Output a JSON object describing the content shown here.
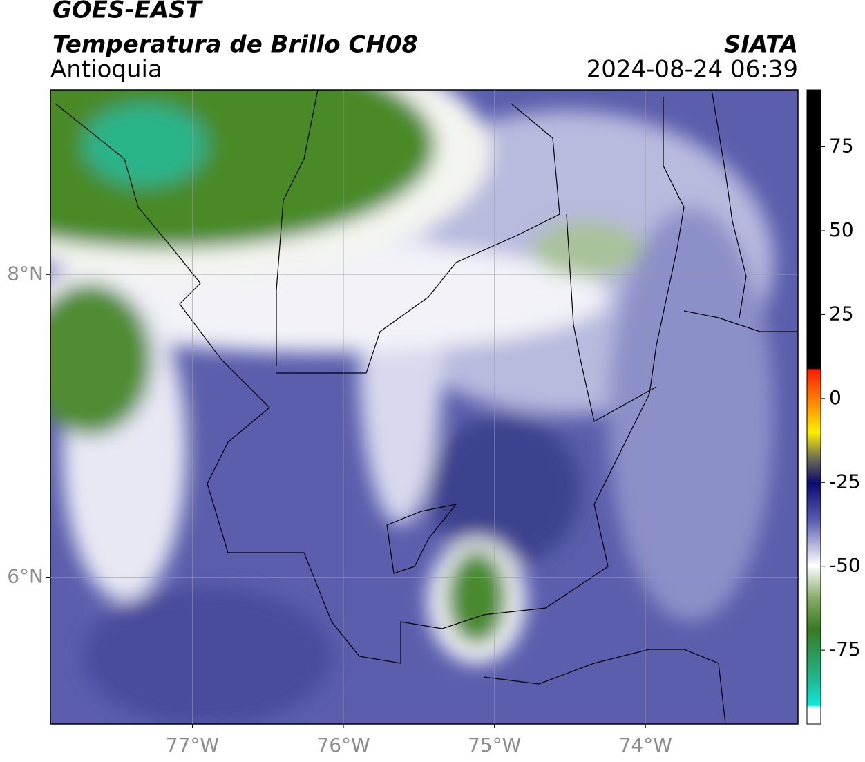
{
  "chart_data": {
    "type": "map",
    "title": "GOES-EAST",
    "subtitle": "Temperatura de Brillo CH08",
    "region": "Antioquia",
    "source": "SIATA",
    "datetime": "2024-08-24 06:39",
    "xlim": [
      -77.94,
      -72.99
    ],
    "ylim": [
      5.03,
      9.22
    ],
    "xticks": [
      {
        "value": -77,
        "label": "77°W"
      },
      {
        "value": -76,
        "label": "76°W"
      },
      {
        "value": -75,
        "label": "75°W"
      },
      {
        "value": -74,
        "label": "74°W"
      }
    ],
    "yticks": [
      {
        "value": 8,
        "label": "8°N"
      },
      {
        "value": 6,
        "label": "6°N"
      }
    ],
    "grid": true,
    "colorbar": {
      "lim": [
        -97,
        92
      ],
      "ticks": [
        75,
        50,
        25,
        0,
        -25,
        -50,
        -75
      ]
    }
  }
}
